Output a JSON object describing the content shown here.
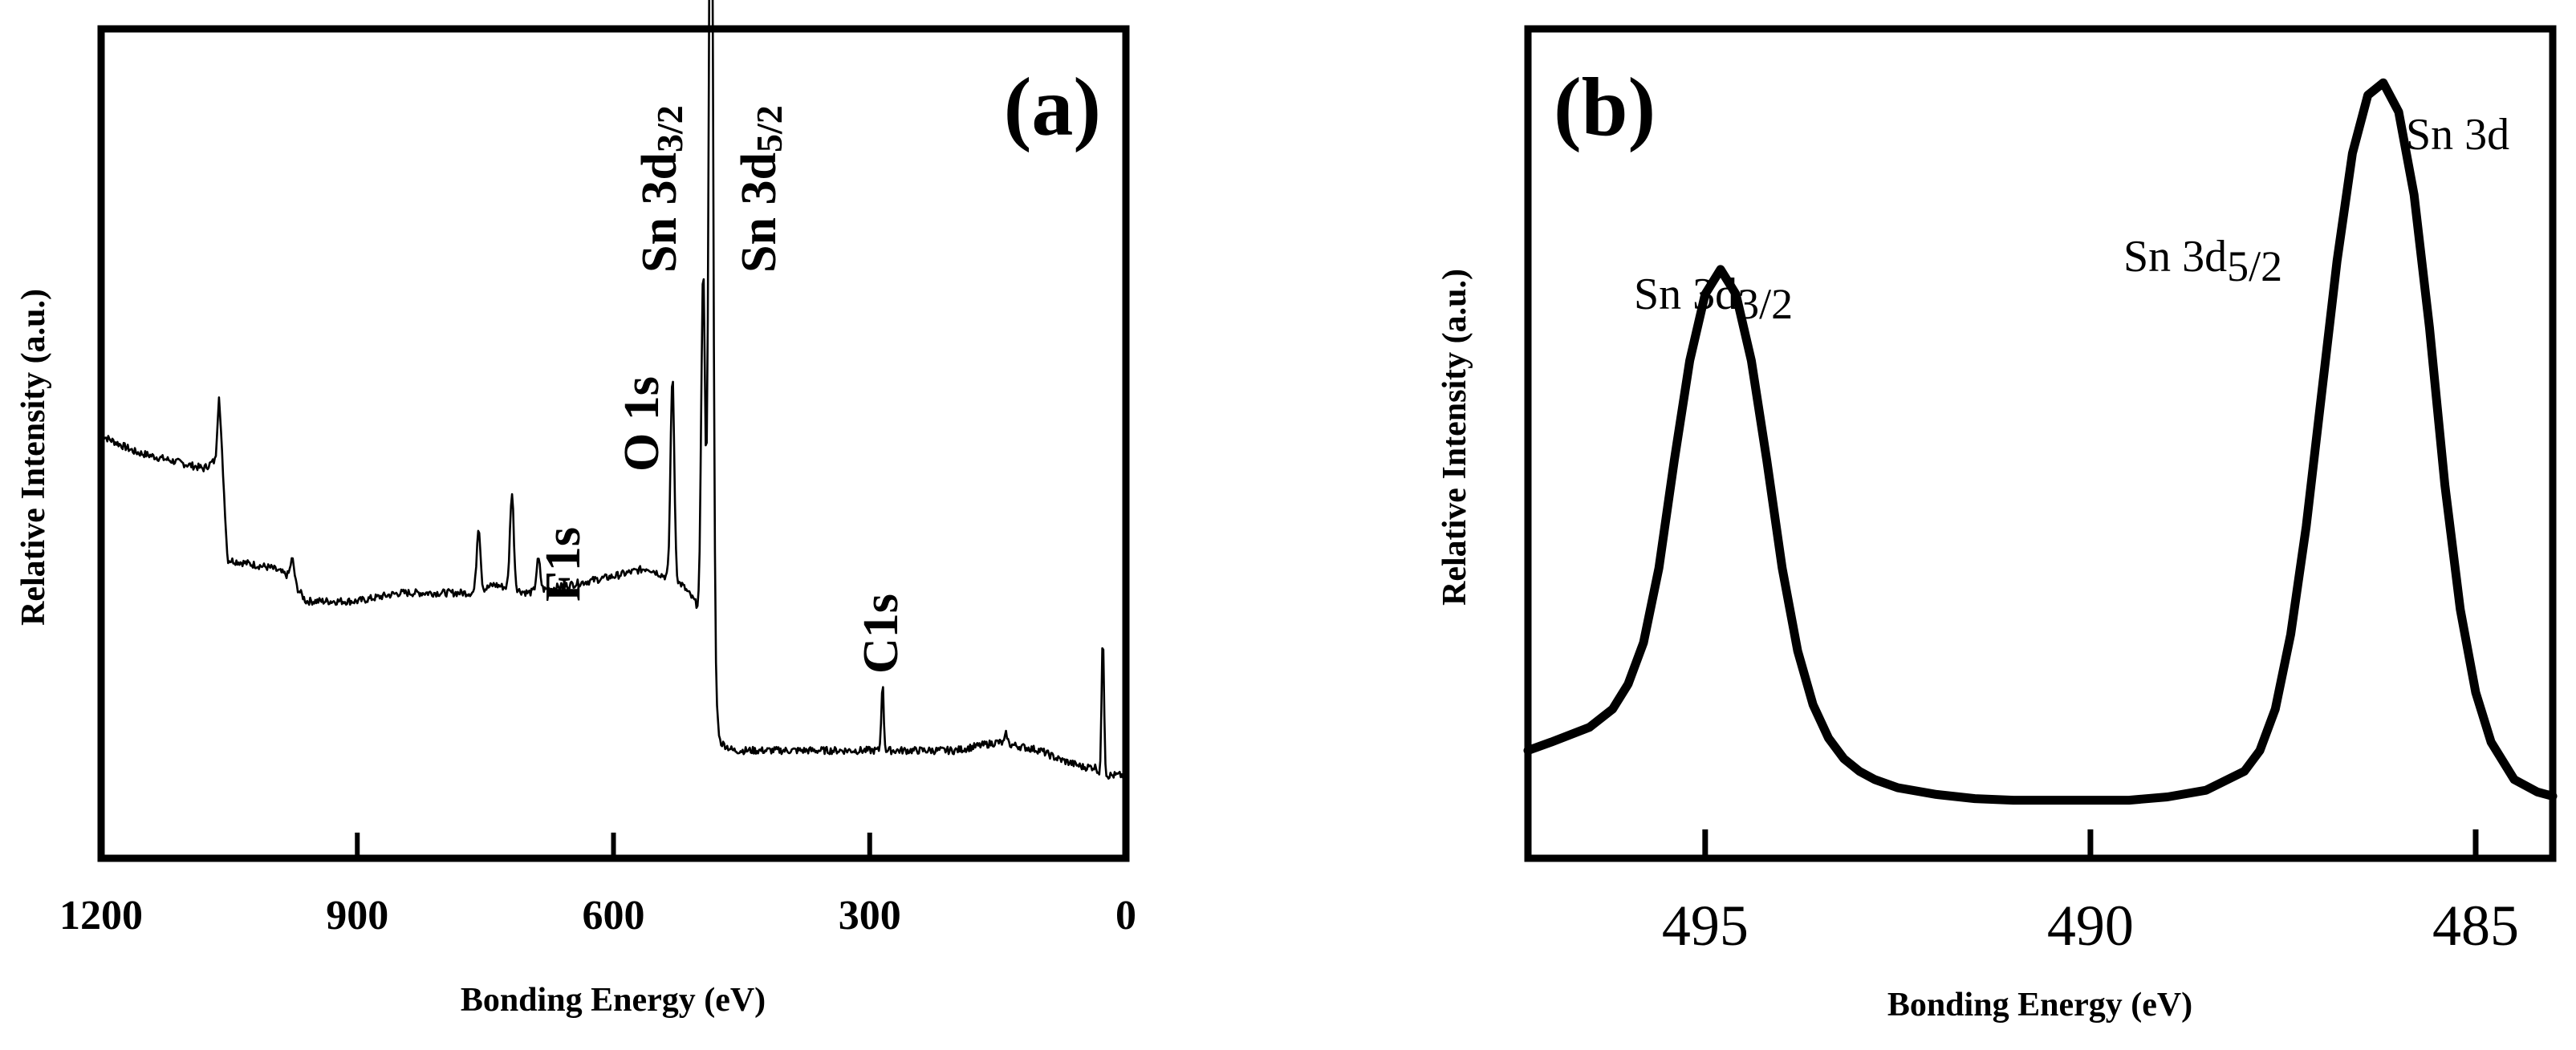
{
  "chart_data": [
    {
      "panel_label": "(a)",
      "type": "line",
      "title": "",
      "xlabel": "Bonding Energy (eV)",
      "ylabel": "Relative Intensity (a.u.)",
      "xlim": [
        1200,
        0
      ],
      "x_reversed": true,
      "ylim": [
        0,
        100
      ],
      "xticks": [
        1200,
        900,
        600,
        300,
        0
      ],
      "xtick_labels": [
        "1200",
        "900",
        "600",
        "300",
        "0"
      ],
      "grid": false,
      "legend": "none",
      "baseline": [
        [
          1200,
          51
        ],
        [
          1160,
          49
        ],
        [
          1120,
          48
        ],
        [
          1080,
          47
        ],
        [
          1066,
          48
        ],
        [
          1062,
          56
        ],
        [
          1058,
          48
        ],
        [
          1052,
          36
        ],
        [
          1000,
          35
        ],
        [
          980,
          34
        ],
        [
          960,
          31
        ],
        [
          900,
          31
        ],
        [
          850,
          32
        ],
        [
          760,
          32
        ],
        [
          740,
          33
        ],
        [
          700,
          32
        ],
        [
          650,
          33
        ],
        [
          600,
          34
        ],
        [
          560,
          35
        ],
        [
          540,
          34
        ],
        [
          520,
          33
        ],
        [
          505,
          31
        ],
        [
          490,
          28
        ],
        [
          480,
          18
        ],
        [
          475,
          14
        ],
        [
          460,
          13
        ],
        [
          400,
          13
        ],
        [
          300,
          13
        ],
        [
          200,
          13
        ],
        [
          150,
          14
        ],
        [
          100,
          13
        ],
        [
          80,
          12
        ],
        [
          50,
          11
        ],
        [
          35,
          11
        ],
        [
          30,
          10
        ],
        [
          25,
          10
        ],
        [
          0,
          10
        ]
      ],
      "peaks": [
        {
          "x": 1062,
          "height": 56
        },
        {
          "x": 976,
          "height": 36
        },
        {
          "x": 758,
          "height": 40
        },
        {
          "x": 719,
          "height": 44
        },
        {
          "x": 688,
          "height": 36
        },
        {
          "x": 531,
          "height": 58
        },
        {
          "x": 495,
          "height": 71
        },
        {
          "x": 487,
          "height": 81
        },
        {
          "x": 485,
          "height": 93
        },
        {
          "x": 285,
          "height": 21
        },
        {
          "x": 140,
          "height": 15
        },
        {
          "x": 27,
          "height": 27
        }
      ],
      "annotations": [
        {
          "text": "F1s",
          "x": 680,
          "y": 34
        },
        {
          "text": "O 1s",
          "x": 555,
          "y": 50
        },
        {
          "text": "Sn 3d3/2",
          "x": 495,
          "y": 81
        },
        {
          "text": "Sn 3d5/2",
          "x": 430,
          "y": 81
        },
        {
          "text": "C1s",
          "x": 290,
          "y": 28
        }
      ]
    },
    {
      "panel_label": "(b)",
      "type": "line",
      "title": "",
      "xlabel": "Bonding Energy (eV)",
      "ylabel": "Relative Intensity (a.u.)",
      "xlim": [
        497.3,
        484.0
      ],
      "x_reversed": true,
      "ylim": [
        0,
        100
      ],
      "xticks": [
        495,
        490,
        485
      ],
      "xtick_labels": [
        "495",
        "490",
        "485"
      ],
      "grid": false,
      "legend": "none",
      "series": [
        {
          "name": "Sn 3d",
          "x": [
            497.3,
            497.0,
            496.5,
            496.2,
            496.0,
            495.8,
            495.6,
            495.4,
            495.2,
            495.0,
            494.8,
            494.6,
            494.4,
            494.2,
            494.0,
            493.8,
            493.6,
            493.4,
            493.2,
            493.0,
            492.8,
            492.5,
            492.0,
            491.5,
            491.0,
            490.5,
            490.0,
            489.5,
            489.0,
            488.5,
            488.0,
            487.8,
            487.6,
            487.4,
            487.2,
            487.0,
            486.8,
            486.6,
            486.4,
            486.2,
            486.0,
            485.8,
            485.6,
            485.4,
            485.2,
            485.0,
            484.8,
            484.5,
            484.2,
            484.0
          ],
          "y": [
            13.0,
            14.0,
            15.8,
            18.0,
            21.0,
            26.0,
            35.0,
            48.0,
            60.0,
            68.0,
            71.0,
            68.0,
            60.0,
            48.0,
            35.0,
            25.0,
            18.5,
            14.5,
            12.0,
            10.5,
            9.5,
            8.5,
            7.7,
            7.2,
            7.0,
            7.0,
            7.0,
            7.0,
            7.4,
            8.2,
            10.5,
            13.0,
            18.0,
            27.0,
            40.0,
            56.0,
            72.0,
            85.0,
            92.0,
            93.5,
            90.0,
            80.0,
            64.0,
            45.0,
            30.0,
            20.0,
            14.0,
            9.5,
            8.0,
            7.5
          ]
        }
      ],
      "annotations": [
        {
          "text": "Sn 3d3/2",
          "x": 494.8,
          "y": 82
        },
        {
          "text": "Sn 3d5/2",
          "x": 486.8,
          "y": 90
        },
        {
          "text": "Sn 3d",
          "x": 485.2,
          "y": 112
        }
      ]
    }
  ]
}
